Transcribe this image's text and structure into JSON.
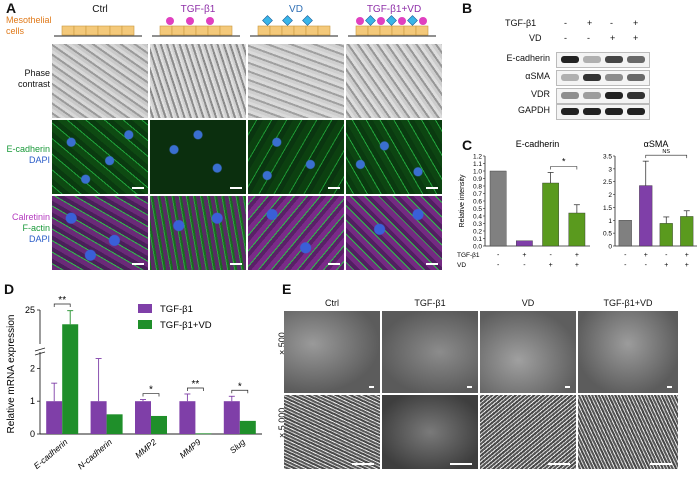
{
  "panel_a": {
    "label": "A",
    "conditions": [
      {
        "label": "Ctrl",
        "color": "#222222"
      },
      {
        "label": "TGF-β1",
        "color": "#8e2fa8"
      },
      {
        "label": "VD",
        "color": "#2f6fb5"
      },
      {
        "label": "TGF-β1+VD",
        "color": "#8e2fa8"
      }
    ],
    "cells_label": [
      "Mesothelial",
      "cells"
    ],
    "row_labels": [
      {
        "lines": [
          "Phase",
          "contrast"
        ],
        "colors": [
          "#222222",
          "#222222"
        ]
      },
      {
        "lines": [
          "E-cadherin",
          "DAPI"
        ],
        "colors": [
          "#1a9a3a",
          "#2a5cc8"
        ]
      },
      {
        "lines": [
          "Calretinin",
          "F-actin",
          "DAPI"
        ],
        "colors": [
          "#b53ac0",
          "#1a9a3a",
          "#2a5cc8"
        ]
      }
    ]
  },
  "panel_b": {
    "label": "B",
    "treatments": [
      {
        "name": "TGF-β1",
        "values": [
          "-",
          "+",
          "-",
          "+"
        ]
      },
      {
        "name": "VD",
        "values": [
          "-",
          "-",
          "+",
          "+"
        ]
      }
    ],
    "proteins": [
      "E-cadherin",
      "αSMA",
      "VDR",
      "GAPDH"
    ],
    "band_intensity": [
      [
        1.0,
        0.2,
        0.8,
        0.6
      ],
      [
        0.2,
        0.9,
        0.4,
        0.6
      ],
      [
        0.4,
        0.3,
        1.0,
        0.9
      ],
      [
        1.0,
        1.0,
        1.0,
        1.0
      ]
    ]
  },
  "panel_c": {
    "label": "C",
    "treatment_rows": [
      {
        "name": "TGF-β1",
        "values": [
          "-",
          "+",
          "-",
          "+"
        ]
      },
      {
        "name": "VD",
        "values": [
          "-",
          "-",
          "+",
          "+"
        ]
      }
    ]
  },
  "panel_d": {
    "label": "D"
  },
  "panel_e": {
    "label": "E",
    "conditions": [
      "Ctrl",
      "TGF-β1",
      "VD",
      "TGF-β1+VD"
    ],
    "magnifications": [
      "× 500",
      "× 5,000"
    ]
  },
  "chart_data": [
    {
      "type": "bar",
      "title": "E-cadherin",
      "ylabel": "Relative intensity",
      "ylim": [
        0,
        1.2
      ],
      "yticks": [
        "0.0",
        "0.1",
        "0.2",
        "0.3",
        "0.4",
        "0.5",
        "0.6",
        "0.7",
        "0.8",
        "0.9",
        "1.0",
        "1.1",
        "1.2"
      ],
      "categories": [
        "Ctrl",
        "TGF-β1",
        "VD",
        "TGF-β1+VD"
      ],
      "values": [
        1.0,
        0.07,
        0.84,
        0.44
      ],
      "errors": [
        0.0,
        0.0,
        0.14,
        0.11
      ],
      "colors": [
        "#808080",
        "#7f3fa8",
        "#5a9a1e",
        "#5a9a1e"
      ],
      "significance": [
        {
          "from": 2,
          "to": 3,
          "label": "*"
        }
      ]
    },
    {
      "type": "bar",
      "title": "αSMA",
      "ylim": [
        0,
        3.5
      ],
      "yticks": [
        "0",
        "0.5",
        "1",
        "1.5",
        "2",
        "2.5",
        "3",
        "3.5"
      ],
      "categories": [
        "Ctrl",
        "TGF-β1",
        "VD",
        "TGF-β1+VD"
      ],
      "values": [
        1.0,
        2.35,
        0.88,
        1.15
      ],
      "errors": [
        0.0,
        0.95,
        0.25,
        0.22
      ],
      "colors": [
        "#808080",
        "#7f3fa8",
        "#5a9a1e",
        "#5a9a1e"
      ],
      "significance": [
        {
          "from": 1,
          "to": 3,
          "label": "NS"
        }
      ]
    },
    {
      "type": "bar",
      "ylabel": "Relative mRNA expression",
      "axis_break": true,
      "upper_ylim": [
        15,
        25
      ],
      "upper_yticks": [
        "25"
      ],
      "ylim": [
        0,
        2.5
      ],
      "yticks": [
        "0",
        "1",
        "2"
      ],
      "categories": [
        "E-cadherin",
        "N-cadherin",
        "MMP2",
        "MMP9",
        "Slug"
      ],
      "series": [
        {
          "name": "TGF-β1",
          "color": "#7f3fa8",
          "values": [
            1.0,
            1.0,
            1.0,
            1.0,
            1.0
          ],
          "errors": [
            0.55,
            1.3,
            0.05,
            0.22,
            0.15
          ]
        },
        {
          "name": "TGF-β1+VD",
          "color": "#1f8f2a",
          "values": [
            20.8,
            0.6,
            0.55,
            0.02,
            0.4
          ],
          "errors": [
            4.0,
            0.0,
            0.0,
            0.0,
            0.0
          ]
        }
      ],
      "significance": [
        {
          "category": 0,
          "label": "**"
        },
        {
          "category": 2,
          "label": "*"
        },
        {
          "category": 3,
          "label": "**"
        },
        {
          "category": 4,
          "label": "*"
        }
      ],
      "legend_position": "top-right"
    }
  ]
}
